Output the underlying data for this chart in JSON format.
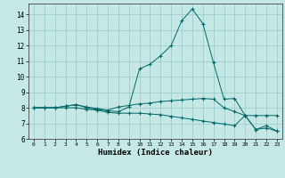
{
  "xlabel": "Humidex (Indice chaleur)",
  "background_color": "#c5e8e5",
  "grid_color": "#9ecece",
  "line_color": "#006868",
  "xlim": [
    -0.5,
    23.5
  ],
  "ylim": [
    6.0,
    14.7
  ],
  "yticks": [
    6,
    7,
    8,
    9,
    10,
    11,
    12,
    13,
    14
  ],
  "xticks": [
    0,
    1,
    2,
    3,
    4,
    5,
    6,
    7,
    8,
    9,
    10,
    11,
    12,
    13,
    14,
    15,
    16,
    17,
    18,
    19,
    20,
    21,
    22,
    23
  ],
  "x": [
    0,
    1,
    2,
    3,
    4,
    5,
    6,
    7,
    8,
    9,
    10,
    11,
    12,
    13,
    14,
    15,
    16,
    17,
    18,
    19,
    20,
    21,
    22,
    23
  ],
  "line1": [
    8.0,
    8.0,
    8.0,
    8.1,
    8.2,
    8.0,
    7.9,
    7.8,
    7.75,
    8.05,
    10.5,
    10.8,
    11.35,
    12.0,
    13.6,
    14.35,
    13.4,
    10.9,
    8.55,
    8.6,
    7.5,
    6.6,
    6.85,
    6.5
  ],
  "line2": [
    8.0,
    8.0,
    8.0,
    8.1,
    8.2,
    8.05,
    7.95,
    7.85,
    8.05,
    8.15,
    8.25,
    8.3,
    8.4,
    8.45,
    8.5,
    8.55,
    8.6,
    8.55,
    8.0,
    7.75,
    7.5,
    7.5,
    7.5,
    7.5
  ],
  "line3": [
    8.0,
    8.0,
    8.0,
    8.0,
    8.0,
    7.9,
    7.85,
    7.7,
    7.65,
    7.65,
    7.65,
    7.6,
    7.55,
    7.45,
    7.35,
    7.25,
    7.15,
    7.05,
    6.95,
    6.85,
    7.5,
    6.6,
    6.7,
    6.5
  ]
}
